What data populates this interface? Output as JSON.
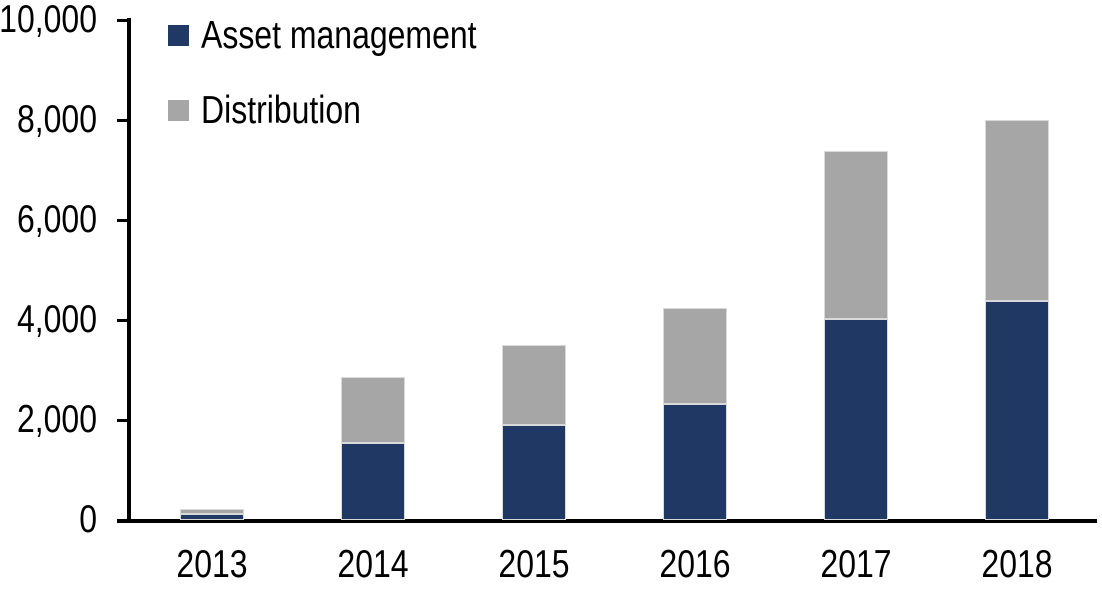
{
  "chart_data": {
    "type": "bar",
    "variant": "stacked-column",
    "categories": [
      "2013",
      "2014",
      "2015",
      "2016",
      "2017",
      "2018"
    ],
    "series": [
      {
        "name": "Asset management",
        "color": "#1F3864",
        "values": [
          120,
          1550,
          1900,
          2320,
          4030,
          4390
        ]
      },
      {
        "name": "Distribution",
        "color": "#A6A6A6",
        "values": [
          110,
          1310,
          1600,
          1930,
          3350,
          3610
        ]
      }
    ],
    "totals": [
      230,
      2860,
      3500,
      4250,
      7380,
      8000
    ],
    "y_axis": {
      "min": 0,
      "max": 10000,
      "tick_interval": 2000,
      "tick_labels": [
        "0",
        "2,000",
        "4,000",
        "6,000",
        "8,000",
        "10,000"
      ]
    },
    "legend_position": "top-left",
    "grid": false,
    "background_color": "#FFFFFF",
    "axis_color": "#000000",
    "bar_border_color": "#D9D9D9",
    "text_color": "#000000"
  }
}
